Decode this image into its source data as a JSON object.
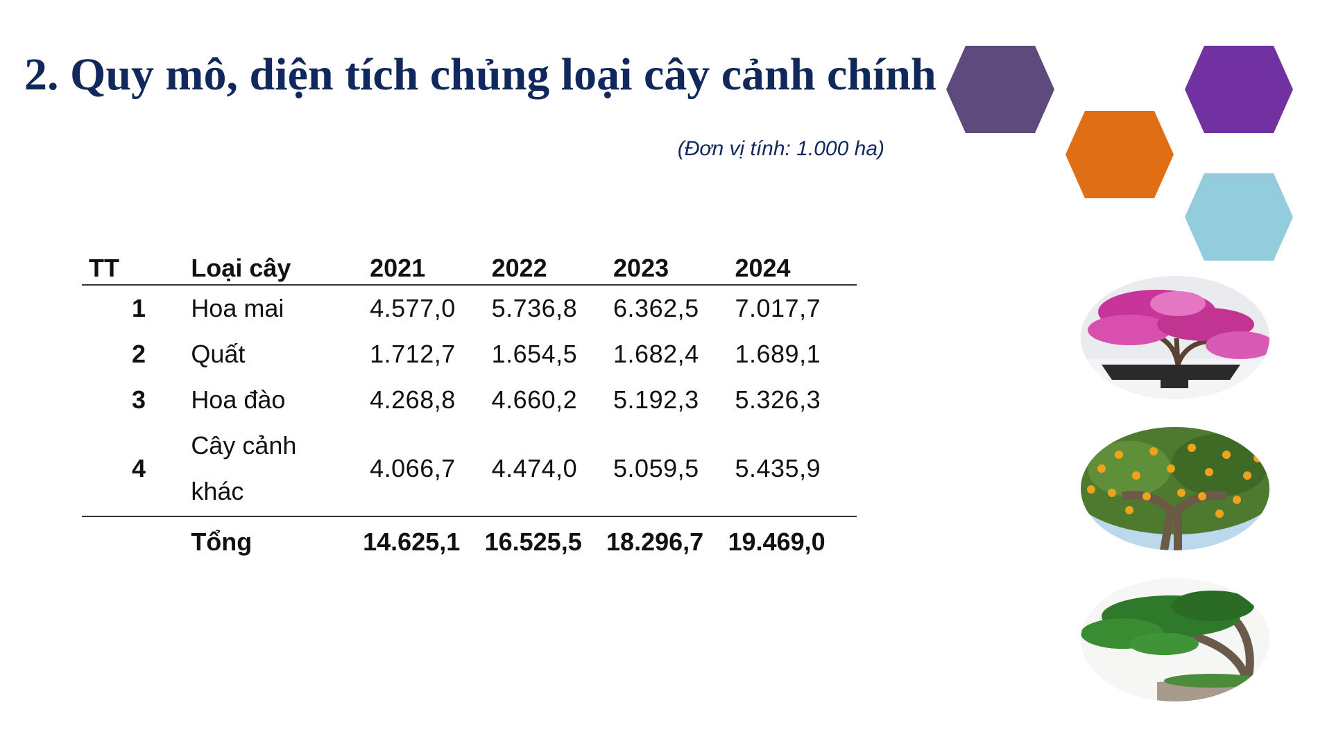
{
  "title": "2. Quy mô, diện tích chủng loại cây cảnh chính",
  "unit_note": "(Đơn vị tính: 1.000 ha)",
  "table": {
    "headers": {
      "tt": "TT",
      "type": "Loại cây",
      "years": [
        "2021",
        "2022",
        "2023",
        "2024"
      ]
    },
    "rows": [
      {
        "tt": "1",
        "type": "Hoa mai",
        "values": [
          "4.577,0",
          "5.736,8",
          "6.362,5",
          "7.017,7"
        ]
      },
      {
        "tt": "2",
        "type": "Quất",
        "values": [
          "1.712,7",
          "1.654,5",
          "1.682,4",
          "1.689,1"
        ]
      },
      {
        "tt": "3",
        "type": "Hoa đào",
        "values": [
          "4.268,8",
          "4.660,2",
          "5.192,3",
          "5.326,3"
        ]
      },
      {
        "tt": "4",
        "type_lines": [
          "Cây cảnh",
          "khác"
        ],
        "values": [
          "4.066,7",
          "4.474,0",
          "5.059,5",
          "5.435,9"
        ]
      }
    ],
    "total": {
      "label": "Tổng",
      "values": [
        "14.625,1",
        "16.525,5",
        "18.296,7",
        "19.469,0"
      ]
    }
  },
  "decor": {
    "hexagon_colors": [
      "#5e4a7c",
      "#7131a0",
      "#e06e14",
      "#93cddd"
    ],
    "photos": [
      "pink-flowering-bonsai",
      "kumquat-tree",
      "pine-bonsai"
    ]
  }
}
